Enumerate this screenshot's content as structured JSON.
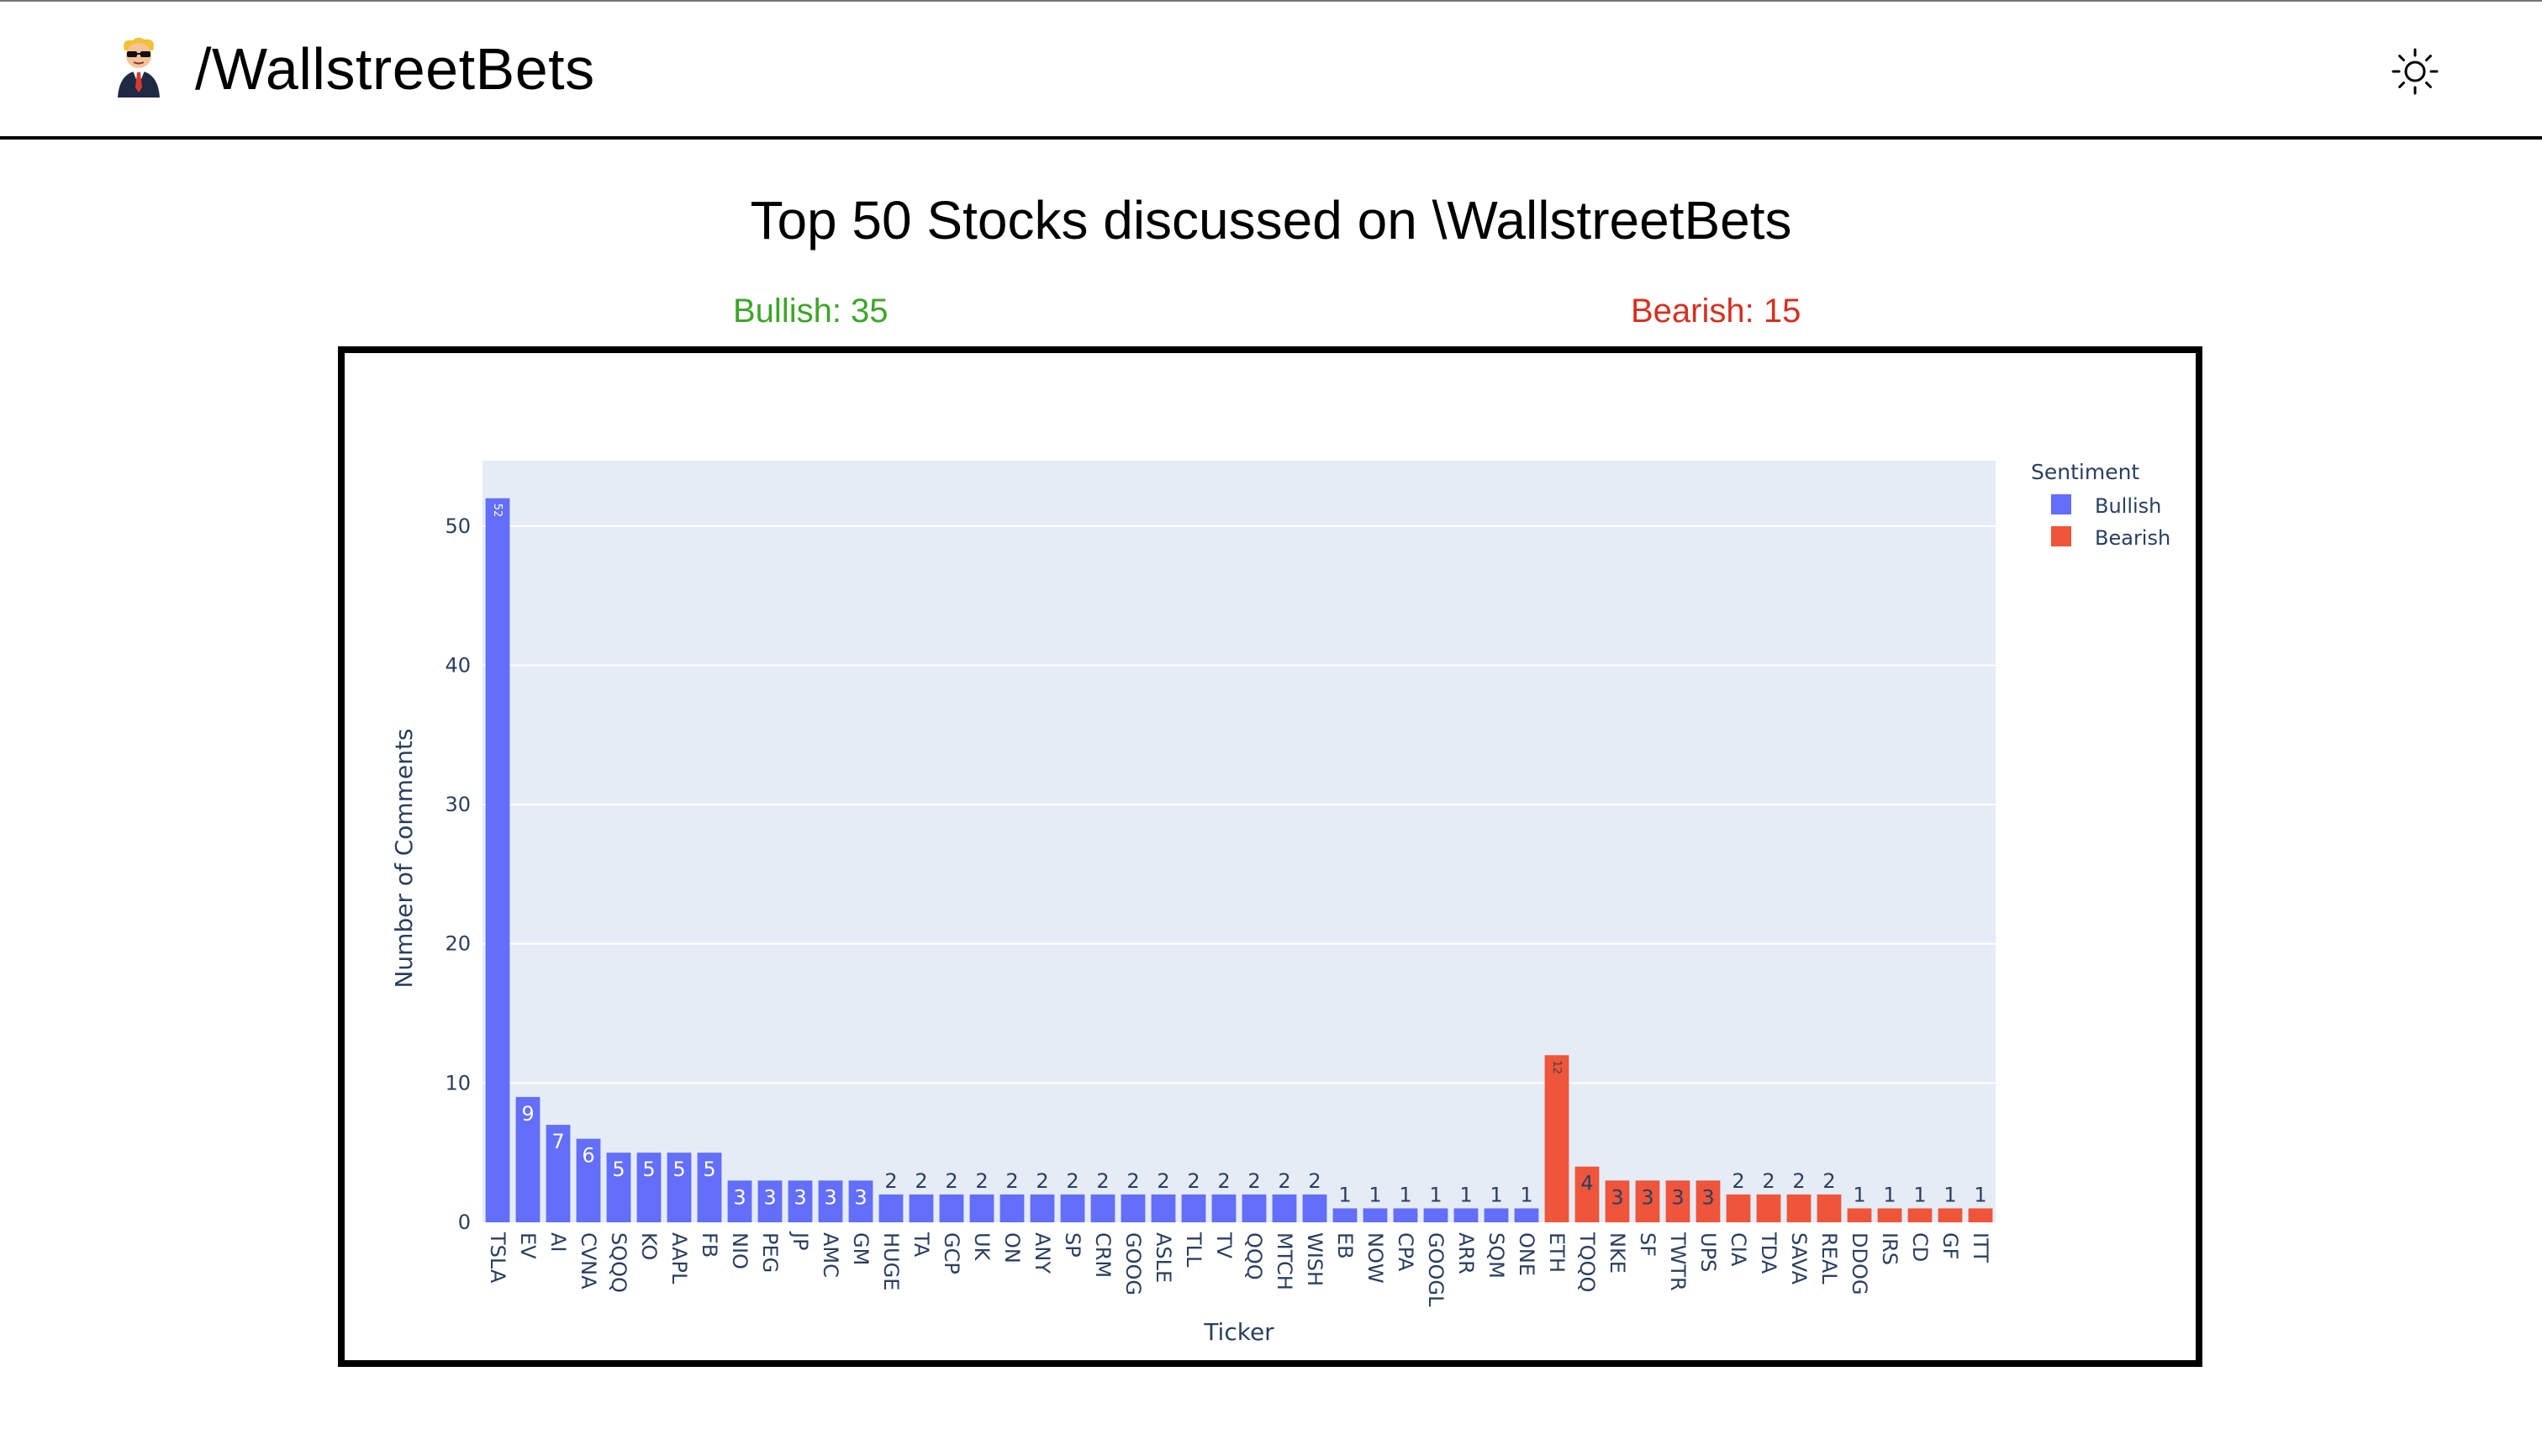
{
  "header": {
    "brand": "/WallstreetBets",
    "logo_icon": "wsb-mascot-icon",
    "theme_icon": "sun-icon"
  },
  "page": {
    "title": "Top 50 Stocks discussed on \\WallstreetBets",
    "bullish_count": "Bullish: 35",
    "bearish_count": "Bearish: 15"
  },
  "colors": {
    "bullish": "#636efa",
    "bearish": "#ef553b",
    "bullish_text": "#3da628",
    "bearish_text": "#d7301f",
    "plot_bg": "#e5ecf6"
  },
  "chart_data": {
    "type": "bar",
    "title": "",
    "xlabel": "Ticker",
    "ylabel": "Number of Comments",
    "ylim": [
      0,
      54.7
    ],
    "yticks": [
      0,
      10,
      20,
      30,
      40,
      50
    ],
    "grid": true,
    "legend": {
      "title": "Sentiment",
      "placement": "right",
      "entries": [
        "Bullish",
        "Bearish"
      ]
    },
    "categories": [
      "TSLA",
      "EV",
      "AI",
      "CVNA",
      "SQQQ",
      "KO",
      "AAPL",
      "FB",
      "NIO",
      "PEG",
      "JP",
      "AMC",
      "GM",
      "HUGE",
      "TA",
      "GCP",
      "UK",
      "ON",
      "ANY",
      "SP",
      "CRM",
      "GOOG",
      "ASLE",
      "TLL",
      "TV",
      "QQQ",
      "MTCH",
      "WISH",
      "EB",
      "NOW",
      "CPA",
      "GOOGL",
      "ARR",
      "SQM",
      "ONE",
      "ETH",
      "TQQQ",
      "NKE",
      "SF",
      "TWTR",
      "UPS",
      "CIA",
      "TDA",
      "SAVA",
      "REAL",
      "DDOG",
      "IRS",
      "CD",
      "GF",
      "ITT"
    ],
    "values": [
      52,
      9,
      7,
      6,
      5,
      5,
      5,
      5,
      3,
      3,
      3,
      3,
      3,
      2,
      2,
      2,
      2,
      2,
      2,
      2,
      2,
      2,
      2,
      2,
      2,
      2,
      2,
      2,
      1,
      1,
      1,
      1,
      1,
      1,
      1,
      12,
      4,
      3,
      3,
      3,
      3,
      2,
      2,
      2,
      2,
      1,
      1,
      1,
      1,
      1
    ],
    "sentiment": [
      "Bullish",
      "Bullish",
      "Bullish",
      "Bullish",
      "Bullish",
      "Bullish",
      "Bullish",
      "Bullish",
      "Bullish",
      "Bullish",
      "Bullish",
      "Bullish",
      "Bullish",
      "Bullish",
      "Bullish",
      "Bullish",
      "Bullish",
      "Bullish",
      "Bullish",
      "Bullish",
      "Bullish",
      "Bullish",
      "Bullish",
      "Bullish",
      "Bullish",
      "Bullish",
      "Bullish",
      "Bullish",
      "Bullish",
      "Bullish",
      "Bullish",
      "Bullish",
      "Bullish",
      "Bullish",
      "Bullish",
      "Bearish",
      "Bearish",
      "Bearish",
      "Bearish",
      "Bearish",
      "Bearish",
      "Bearish",
      "Bearish",
      "Bearish",
      "Bearish",
      "Bearish",
      "Bearish",
      "Bearish",
      "Bearish",
      "Bearish"
    ]
  }
}
